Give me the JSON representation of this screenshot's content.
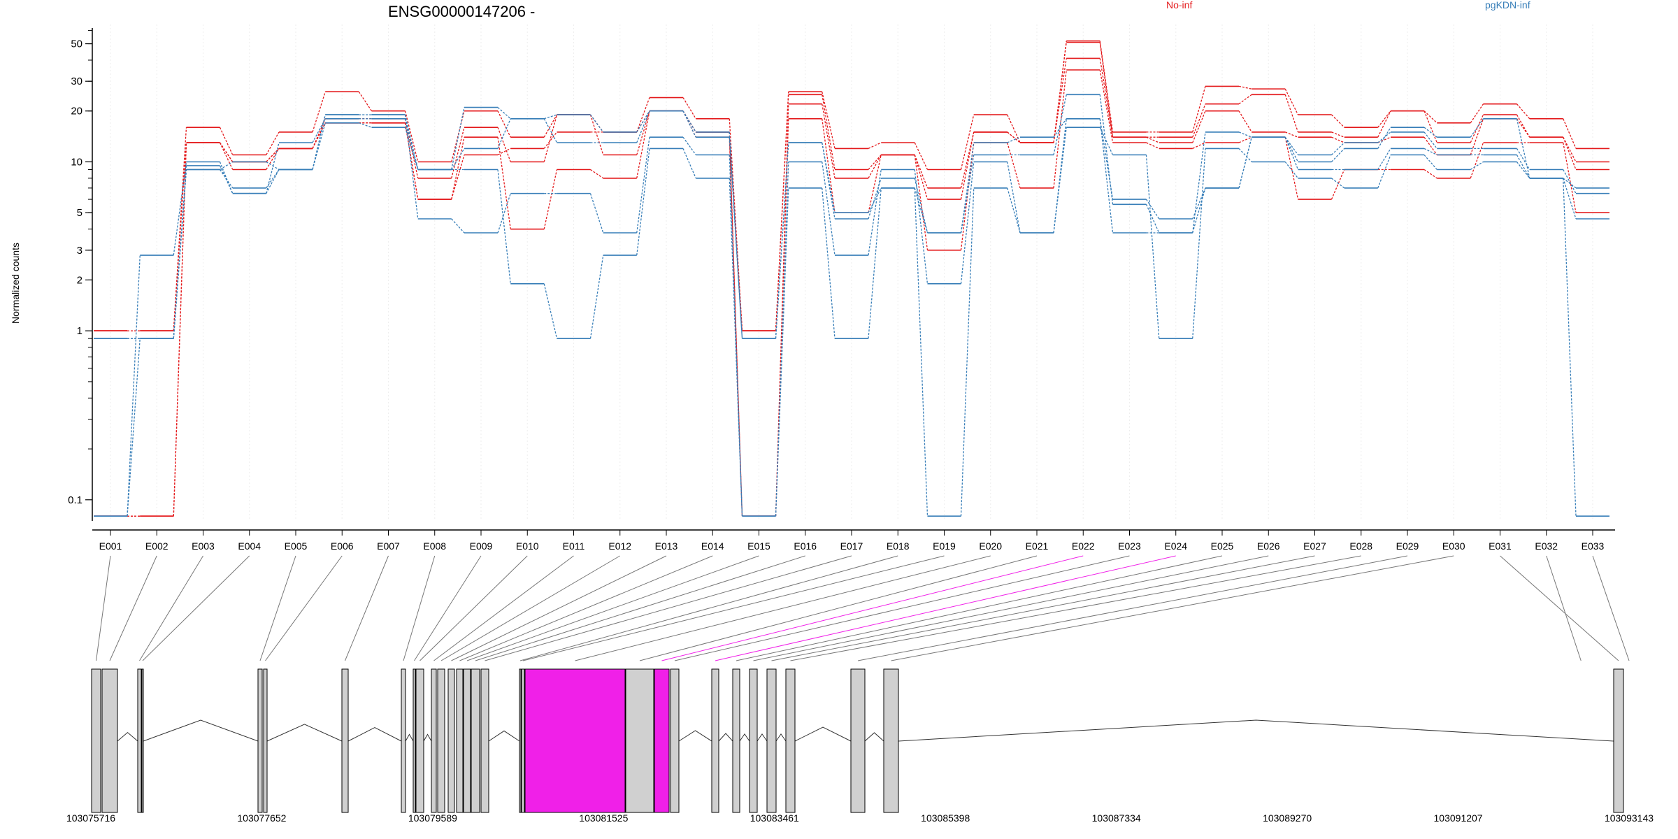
{
  "chart_data": {
    "type": "line",
    "title": "ENSG00000147206 -",
    "ylabel": "Normalized counts",
    "y_scale": "log",
    "ylim": [
      0.075,
      62
    ],
    "y_ticks": [
      {
        "value": 0.1,
        "label": "0.1"
      },
      {
        "value": 1,
        "label": "1"
      },
      {
        "value": 2,
        "label": "2"
      },
      {
        "value": 3,
        "label": "3"
      },
      {
        "value": 5,
        "label": "5"
      },
      {
        "value": 10,
        "label": "10"
      },
      {
        "value": 20,
        "label": "20"
      },
      {
        "value": 30,
        "label": "30"
      },
      {
        "value": 50,
        "label": "50"
      }
    ],
    "categories": [
      "E001",
      "E002",
      "E003",
      "E004",
      "E005",
      "E006",
      "E007",
      "E008",
      "E009",
      "E010",
      "E011",
      "E012",
      "E013",
      "E014",
      "E015",
      "E016",
      "E017",
      "E018",
      "E019",
      "E020",
      "E021",
      "E022",
      "E023",
      "E024",
      "E025",
      "E026",
      "E027",
      "E028",
      "E029",
      "E030",
      "E031",
      "E032",
      "E033"
    ],
    "legend": [
      {
        "name": "No-inf",
        "color": "#e41a1c"
      },
      {
        "name": "pgKDN-inf",
        "color": "#377eb8"
      }
    ],
    "grid": "vertical",
    "series": [
      {
        "group": "No-inf",
        "color": "#e41a1c",
        "values": [
          1,
          1,
          16,
          11,
          15,
          26,
          20,
          10,
          20,
          14,
          19,
          15,
          24,
          18,
          1,
          26,
          12,
          13,
          9,
          19,
          13,
          52,
          15,
          15,
          28,
          27,
          19,
          16,
          20,
          17,
          22,
          18,
          12
        ]
      },
      {
        "group": "No-inf",
        "color": "#e41a1c",
        "values": [
          1,
          1,
          13,
          10,
          12,
          18,
          18,
          8,
          16,
          10,
          19,
          11,
          20,
          15,
          1,
          25,
          9,
          11,
          7,
          15,
          13,
          51,
          14,
          14,
          22,
          25,
          15,
          14,
          20,
          13,
          19,
          14,
          10
        ]
      },
      {
        "group": "No-inf",
        "color": "#e41a1c",
        "values": [
          0.08,
          0.08,
          13,
          9,
          12,
          17,
          17,
          6,
          14,
          4,
          9,
          8,
          20,
          15,
          0.08,
          22,
          8,
          11,
          6,
          15,
          13,
          41,
          14,
          13,
          20,
          15,
          14,
          13,
          14,
          11,
          18,
          14,
          9
        ]
      },
      {
        "group": "No-inf",
        "color": "#e41a1c",
        "values": [
          0.08,
          0.08,
          13,
          10,
          12,
          17,
          17,
          6,
          11,
          12,
          15,
          15,
          20,
          14,
          0.08,
          18,
          5,
          11,
          3,
          13,
          7,
          35,
          13,
          12,
          13,
          14,
          6,
          9,
          9,
          8,
          13,
          13,
          5
        ]
      },
      {
        "group": "pgKDN-inf",
        "color": "#377eb8",
        "values": [
          0.9,
          0.9,
          9,
          7,
          9,
          17,
          16,
          9,
          21,
          18,
          19,
          15,
          20,
          15,
          0.9,
          13,
          5,
          7,
          3.8,
          13,
          14,
          18,
          6,
          4.6,
          7,
          14,
          10,
          12,
          16,
          14,
          18,
          8,
          7
        ]
      },
      {
        "group": "pgKDN-inf",
        "color": "#377eb8",
        "values": [
          0.9,
          0.9,
          9.5,
          6.5,
          13,
          18,
          18,
          9,
          12,
          18,
          13,
          13,
          20,
          14,
          0.9,
          13,
          4.6,
          8,
          3.8,
          11,
          11,
          25,
          5.6,
          3.8,
          15,
          14,
          11,
          13,
          15,
          12,
          12,
          9,
          6.5
        ]
      },
      {
        "group": "pgKDN-inf",
        "color": "#377eb8",
        "values": [
          0.08,
          2.8,
          10,
          6.5,
          9,
          19,
          19,
          4.6,
          3.8,
          6.5,
          6.5,
          3.8,
          14,
          11,
          0.08,
          10,
          2.8,
          9,
          1.9,
          10,
          3.8,
          16,
          11,
          0.9,
          12,
          10,
          8,
          7,
          11,
          9,
          10,
          8,
          4.6
        ]
      },
      {
        "group": "pgKDN-inf",
        "color": "#377eb8",
        "values": [
          0.08,
          0.9,
          9,
          10,
          9,
          19,
          19,
          9,
          9,
          1.9,
          0.9,
          2.8,
          12,
          8,
          0.08,
          7,
          0.9,
          7,
          0.08,
          7,
          3.8,
          18,
          3.8,
          3.8,
          7,
          14,
          9,
          9,
          12,
          11,
          11,
          8,
          0.08
        ]
      }
    ],
    "gene_model": {
      "coordinate_labels": [
        "103075716",
        "103077652",
        "103079589",
        "103081525",
        "103083461",
        "103085398",
        "103087334",
        "103089270",
        "103091207",
        "103093143"
      ],
      "coordinate_start": 103075716,
      "coordinate_end": 103093143,
      "exon_fill": "#d0d0d0",
      "highlight_fill": "#f020e8",
      "highlighted_exons": [
        "E022",
        "E024"
      ]
    }
  }
}
